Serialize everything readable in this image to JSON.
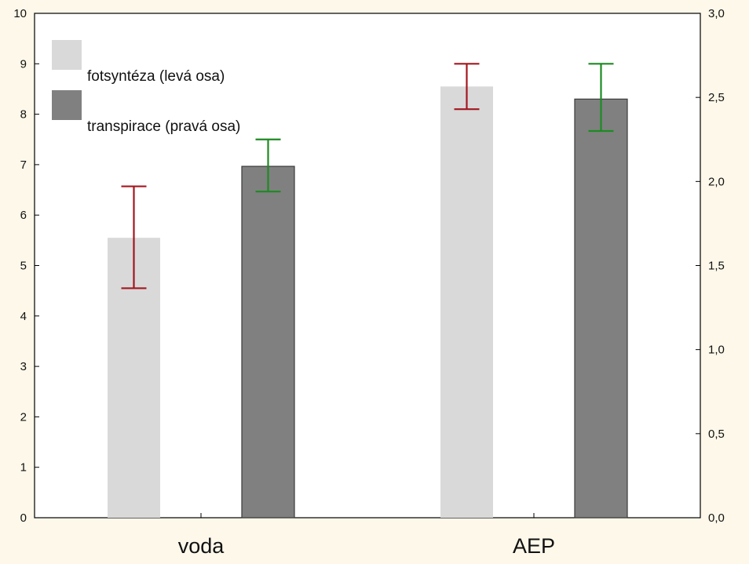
{
  "chart_data": {
    "type": "bar",
    "categories": [
      "voda",
      "AEP"
    ],
    "series": [
      {
        "name": "fotsyntéza (levá osa)",
        "axis": "left",
        "color": "#d9d9d9",
        "values": [
          5.55,
          8.55
        ],
        "error_low": [
          4.55,
          8.1
        ],
        "error_high": [
          6.57,
          9.0
        ],
        "error_color": "#a3161f"
      },
      {
        "name": "transpirace (pravá osa)",
        "axis": "right",
        "color": "#808080",
        "values": [
          2.09,
          2.49
        ],
        "error_low": [
          1.94,
          2.3
        ],
        "error_high": [
          2.25,
          2.7
        ],
        "error_color": "#1d8a22"
      }
    ],
    "y_left": {
      "ylim": [
        0,
        10
      ],
      "ticks": [
        "0",
        "1",
        "2",
        "3",
        "4",
        "5",
        "6",
        "7",
        "8",
        "9",
        "10"
      ]
    },
    "y_right": {
      "ylim": [
        0,
        3.0
      ],
      "ticks": [
        "0,0",
        "0,5",
        "1,0",
        "1,5",
        "2,0",
        "2,5",
        "3,0"
      ]
    },
    "legend_position": "top-left",
    "grid": false
  }
}
